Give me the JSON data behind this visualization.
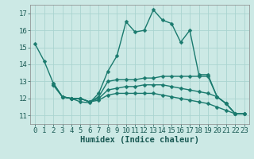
{
  "background_color": "#cce9e5",
  "grid_color": "#aad4d0",
  "line_color": "#1a7a6e",
  "line_width": 1.0,
  "marker": "D",
  "marker_size": 2.5,
  "xlabel": "Humidex (Indice chaleur)",
  "xlabel_fontsize": 7.5,
  "tick_fontsize": 6.5,
  "xlim": [
    -0.5,
    23.5
  ],
  "ylim": [
    10.5,
    17.5
  ],
  "yticks": [
    11,
    12,
    13,
    14,
    15,
    16,
    17
  ],
  "xticks": [
    0,
    1,
    2,
    3,
    4,
    5,
    6,
    7,
    8,
    9,
    10,
    11,
    12,
    13,
    14,
    15,
    16,
    17,
    18,
    19,
    20,
    21,
    22,
    23
  ],
  "series": [
    {
      "x": [
        0,
        1,
        2,
        3,
        4,
        5,
        6,
        7,
        8,
        9,
        10,
        11,
        12,
        13,
        14,
        15,
        16,
        17,
        18,
        19,
        20,
        21,
        22
      ],
      "y": [
        15.2,
        14.2,
        12.9,
        12.1,
        12.0,
        11.8,
        11.75,
        12.3,
        13.6,
        14.5,
        16.5,
        15.9,
        16.0,
        17.2,
        16.6,
        16.4,
        15.3,
        16.0,
        13.4,
        13.4,
        12.1,
        11.7,
        11.1
      ]
    },
    {
      "x": [
        2,
        3,
        4,
        5,
        6,
        7,
        8,
        9,
        10,
        11,
        12,
        13,
        14,
        15,
        16,
        17,
        18,
        19,
        20,
        21,
        22,
        23
      ],
      "y": [
        12.9,
        12.1,
        12.0,
        12.0,
        11.8,
        12.1,
        13.0,
        13.1,
        13.1,
        13.1,
        13.2,
        13.2,
        13.3,
        13.3,
        13.3,
        13.3,
        13.3,
        13.3,
        12.1,
        11.7,
        11.1,
        11.1
      ]
    },
    {
      "x": [
        2,
        3,
        4,
        5,
        6,
        7,
        8,
        9,
        10,
        11,
        12,
        13,
        14,
        15,
        16,
        17,
        18,
        19,
        20,
        21,
        22,
        23
      ],
      "y": [
        12.8,
        12.1,
        12.0,
        12.0,
        11.8,
        12.0,
        12.5,
        12.6,
        12.7,
        12.7,
        12.8,
        12.8,
        12.8,
        12.7,
        12.6,
        12.5,
        12.4,
        12.3,
        12.1,
        11.7,
        11.1,
        11.1
      ]
    },
    {
      "x": [
        2,
        3,
        4,
        5,
        6,
        7,
        8,
        9,
        10,
        11,
        12,
        13,
        14,
        15,
        16,
        17,
        18,
        19,
        20,
        21,
        22,
        23
      ],
      "y": [
        12.8,
        12.1,
        12.0,
        12.0,
        11.8,
        11.9,
        12.2,
        12.3,
        12.3,
        12.3,
        12.3,
        12.3,
        12.2,
        12.1,
        12.0,
        11.9,
        11.8,
        11.7,
        11.5,
        11.3,
        11.1,
        11.1
      ]
    }
  ]
}
